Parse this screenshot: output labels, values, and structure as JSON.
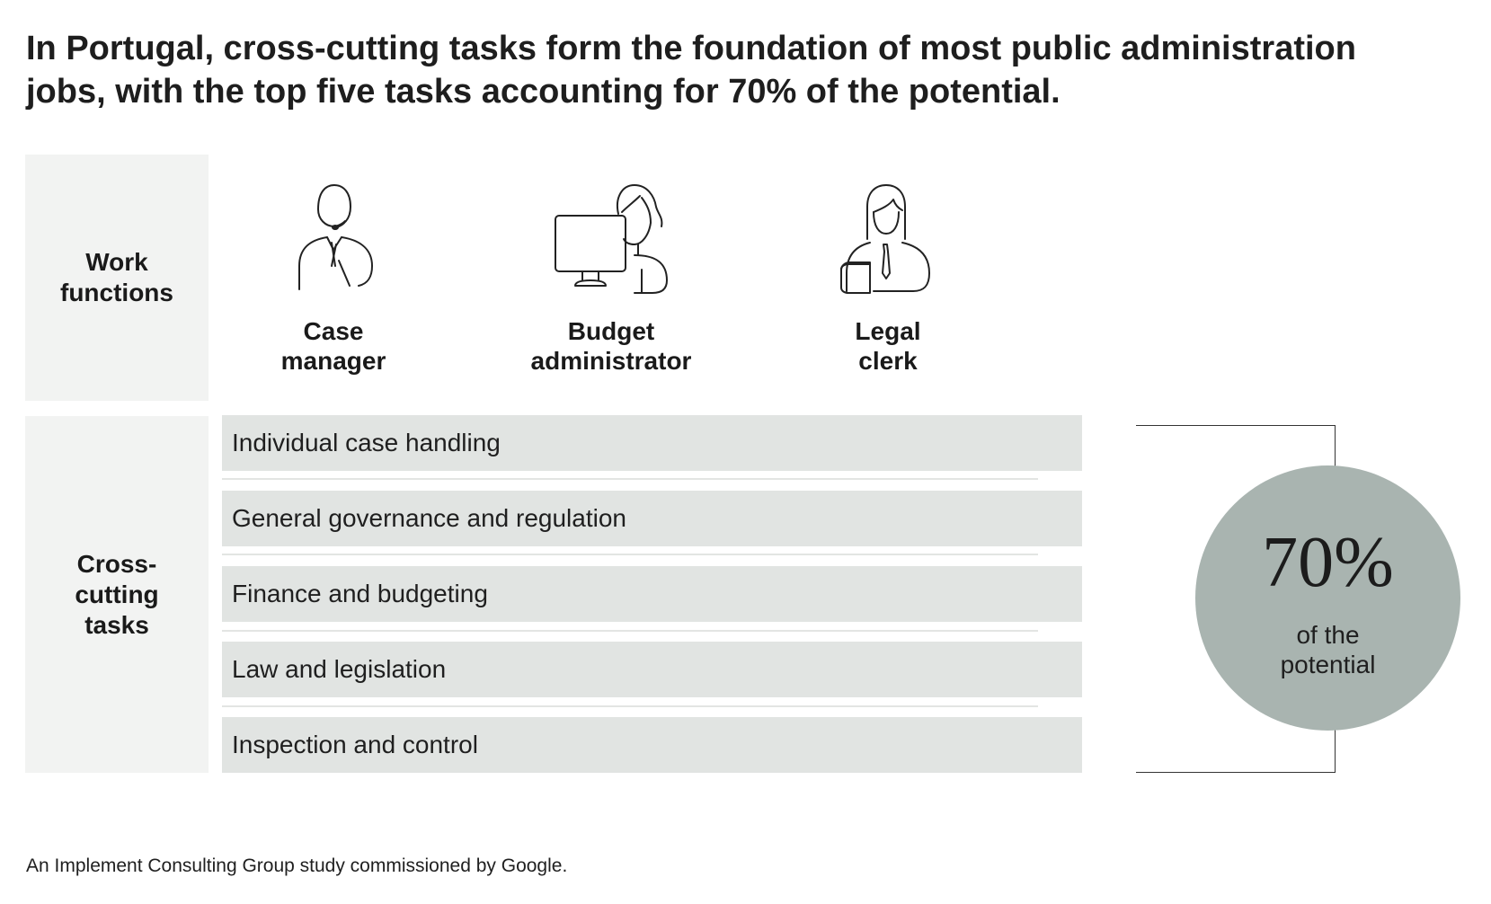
{
  "title": {
    "line1": "In Portugal, cross-cutting tasks form the foundation of most public administration",
    "line2": "jobs, with the top five tasks accounting for 70% of the potential."
  },
  "work_functions": {
    "heading": [
      "Work",
      "functions"
    ],
    "roles": [
      {
        "label": [
          "Case",
          "manager"
        ],
        "icon": "person-headset-icon"
      },
      {
        "label": [
          "Budget",
          "administrator"
        ],
        "icon": "person-computer-icon"
      },
      {
        "label": [
          "Legal",
          "clerk"
        ],
        "icon": "person-book-icon"
      }
    ]
  },
  "cross_cutting": {
    "heading": [
      "Cross-",
      "cutting",
      "tasks"
    ],
    "tasks": [
      "Individual case handling",
      "General governance and regulation",
      "Finance and budgeting",
      "Law and legislation",
      "Inspection and control"
    ]
  },
  "summary": {
    "value": "70%",
    "caption": [
      "of the",
      "potential"
    ]
  },
  "footer": "An Implement Consulting Group study commissioned by Google.",
  "colors": {
    "panel": "#f2f3f2",
    "task_bar": "#e1e4e2",
    "circle": "#a9b4b0",
    "text": "#1a1a1a"
  }
}
